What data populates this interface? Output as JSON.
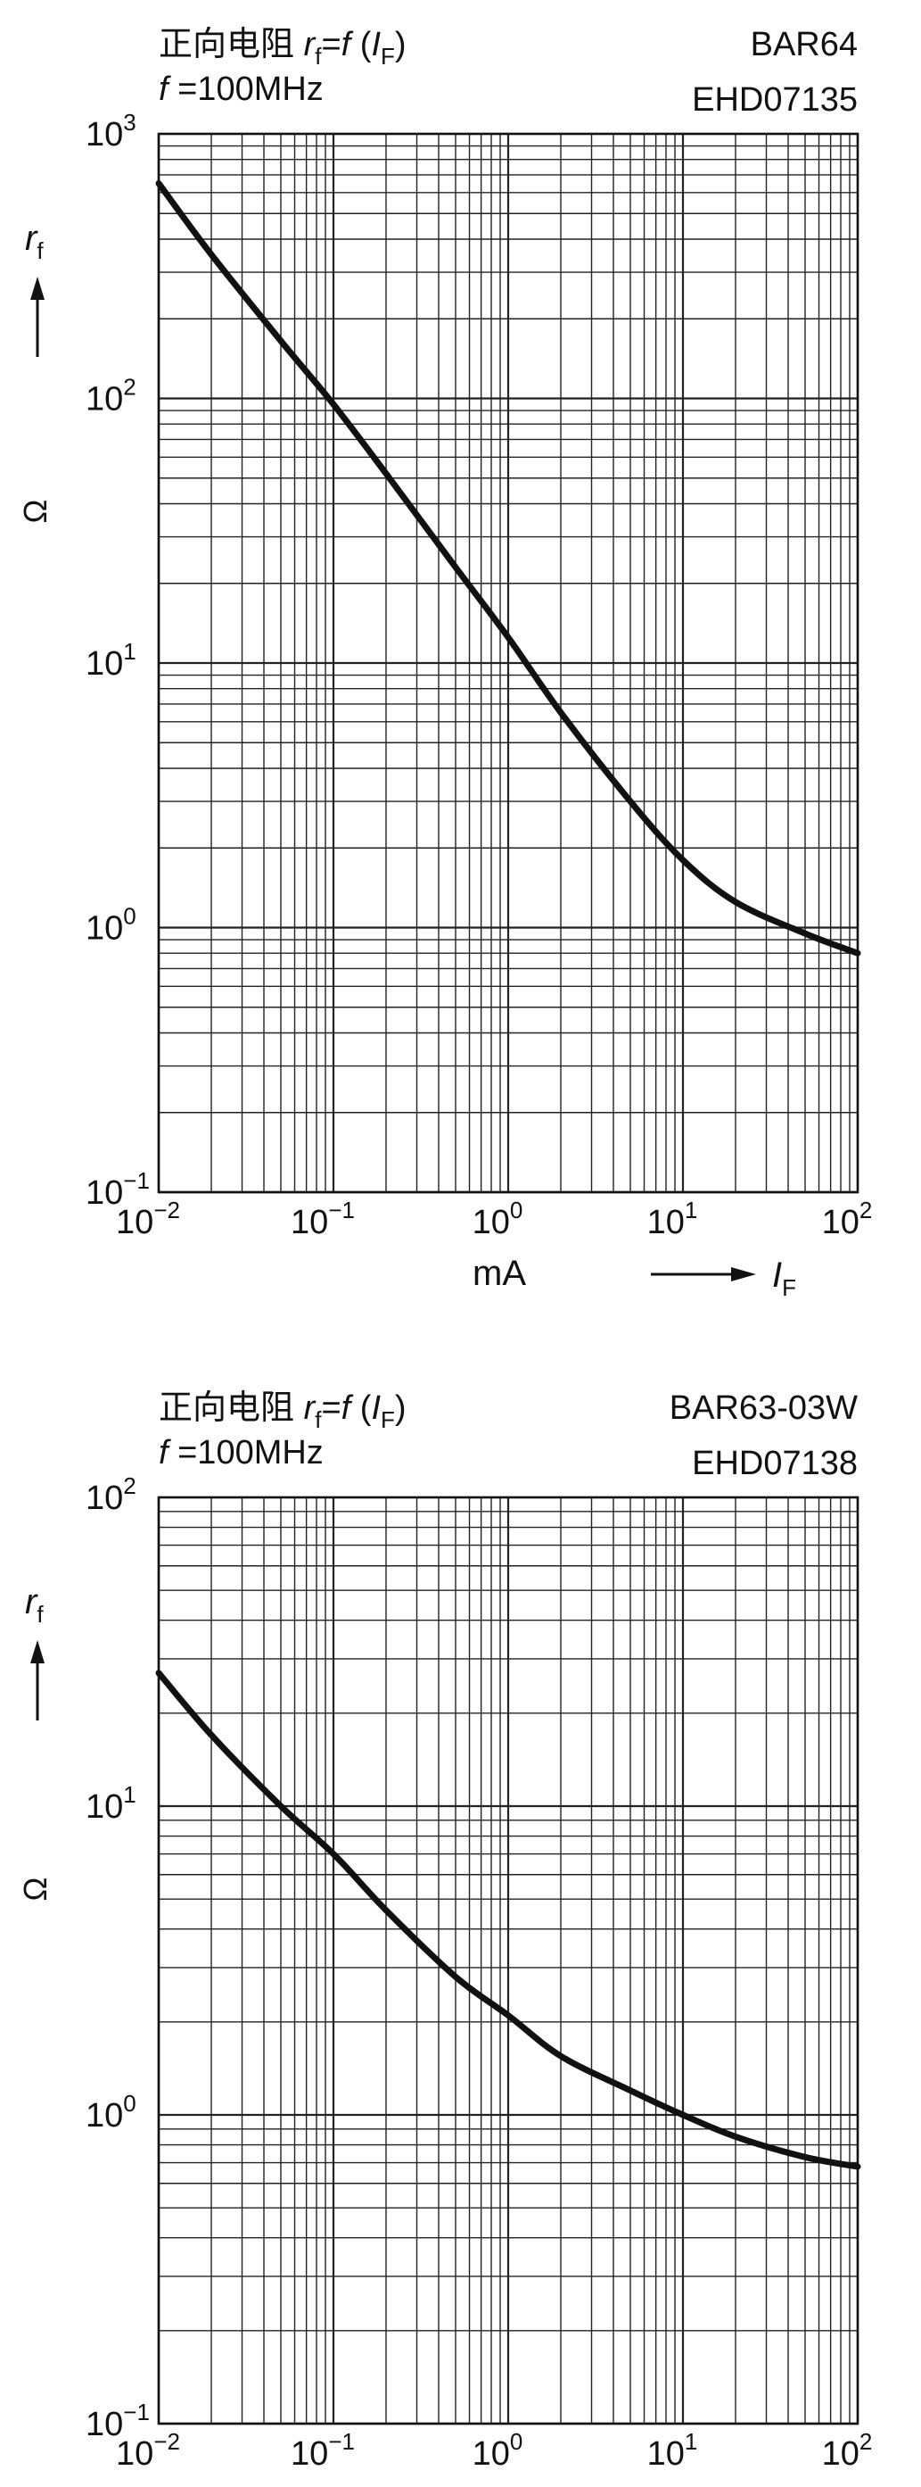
{
  "chart_data": [
    {
      "type": "line",
      "title": "正向电阻",
      "function": {
        "lhs_main": "r",
        "lhs_sub": "f",
        "eq": "=",
        "fn": "f",
        "open": " (",
        "var_main": "I",
        "var_sub": "F",
        "close": ")"
      },
      "condition": {
        "var": "f",
        "text": " =100MHz"
      },
      "part_number": "BAR64",
      "drawing_code": "EHD07135",
      "x": {
        "label": "mA",
        "quantity_main": "I",
        "quantity_sub": "F",
        "scale": "log",
        "lim": [
          0.01,
          100
        ],
        "ticks": [
          {
            "base": "10",
            "exp": "−2"
          },
          {
            "base": "10",
            "exp": "−1"
          },
          {
            "base": "10",
            "exp": "0"
          },
          {
            "base": "10",
            "exp": "1"
          },
          {
            "base": "10",
            "exp": "2"
          }
        ]
      },
      "y": {
        "label": "Ω",
        "quantity_main": "r",
        "quantity_sub": "f",
        "scale": "log",
        "lim": [
          0.1,
          1000
        ],
        "ticks": [
          {
            "base": "10",
            "exp": "−1"
          },
          {
            "base": "10",
            "exp": "0"
          },
          {
            "base": "10",
            "exp": "1"
          },
          {
            "base": "10",
            "exp": "2"
          },
          {
            "base": "10",
            "exp": "3"
          }
        ]
      },
      "grid": true,
      "series": [
        {
          "x": [
            0.01,
            0.02,
            0.05,
            0.1,
            0.2,
            0.5,
            1,
            2,
            5,
            10,
            20,
            50,
            100
          ],
          "y": [
            650,
            350,
            165,
            95,
            52,
            23,
            12.5,
            6.5,
            3.0,
            1.8,
            1.25,
            0.95,
            0.8
          ]
        }
      ],
      "colors": {
        "line": "#111111",
        "grid": "#222222"
      }
    },
    {
      "type": "line",
      "title": "正向电阻",
      "function": {
        "lhs_main": "r",
        "lhs_sub": "f",
        "eq": "=",
        "fn": "f",
        "open": " (",
        "var_main": "I",
        "var_sub": "F",
        "close": ")"
      },
      "condition": {
        "var": "f",
        "text": " =100MHz"
      },
      "part_number": "BAR63-03W",
      "drawing_code": "EHD07138",
      "x": {
        "label": "mA",
        "quantity_main": "I",
        "quantity_sub": "F",
        "scale": "log",
        "lim": [
          0.01,
          100
        ],
        "ticks": [
          {
            "base": "10",
            "exp": "−2"
          },
          {
            "base": "10",
            "exp": "−1"
          },
          {
            "base": "10",
            "exp": "0"
          },
          {
            "base": "10",
            "exp": "1"
          },
          {
            "base": "10",
            "exp": "2"
          }
        ]
      },
      "y": {
        "label": "Ω",
        "quantity_main": "r",
        "quantity_sub": "f",
        "scale": "log",
        "lim": [
          0.1,
          100
        ],
        "ticks": [
          {
            "base": "10",
            "exp": "−1"
          },
          {
            "base": "10",
            "exp": "0"
          },
          {
            "base": "10",
            "exp": "1"
          },
          {
            "base": "10",
            "exp": "2"
          }
        ]
      },
      "grid": true,
      "series": [
        {
          "x": [
            0.01,
            0.02,
            0.05,
            0.1,
            0.2,
            0.5,
            1,
            2,
            5,
            10,
            20,
            50,
            100
          ],
          "y": [
            27,
            17,
            10,
            7,
            4.6,
            2.8,
            2.1,
            1.55,
            1.2,
            1.0,
            0.85,
            0.73,
            0.68
          ]
        }
      ],
      "colors": {
        "line": "#111111",
        "grid": "#222222"
      }
    }
  ]
}
